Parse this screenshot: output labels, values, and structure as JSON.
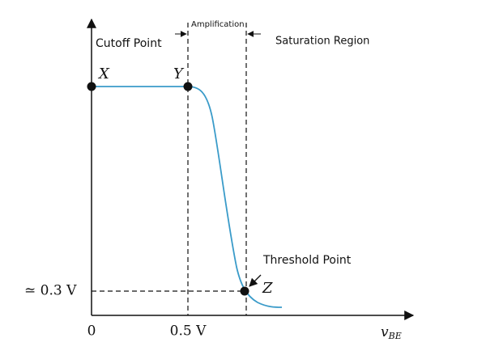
{
  "labels": {
    "cutoff": "Cutoff Point",
    "amplification": "Amplification",
    "saturation": "Saturation Region",
    "threshold": "Threshold Point"
  },
  "points": {
    "x": "X",
    "y": "Y",
    "z": "Z"
  },
  "axis": {
    "y_tick": "≃ 0.3 V",
    "x_origin": "0",
    "x_tick": "0.5 V",
    "x_label_main": "v",
    "x_label_sub": "BE"
  }
}
